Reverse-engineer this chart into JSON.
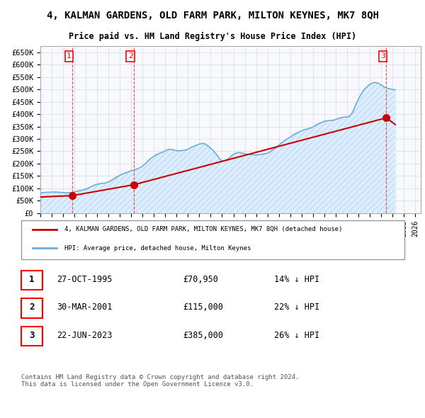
{
  "title": "4, KALMAN GARDENS, OLD FARM PARK, MILTON KEYNES, MK7 8QH",
  "subtitle": "Price paid vs. HM Land Registry's House Price Index (HPI)",
  "hpi_color": "#6baed6",
  "price_color": "#cc0000",
  "bg_color": "#ffffff",
  "grid_color": "#cccccc",
  "hatch_color": "#ddeeff",
  "ylim": [
    0,
    675000
  ],
  "yticks": [
    0,
    50000,
    100000,
    150000,
    200000,
    250000,
    300000,
    350000,
    400000,
    450000,
    500000,
    550000,
    600000,
    650000
  ],
  "xlim_start": 1993.0,
  "xlim_end": 2026.5,
  "transactions": [
    {
      "num": 1,
      "date_str": "27-OCT-1995",
      "price": 70950,
      "x": 1995.82,
      "pct": "14%",
      "dir": "↓"
    },
    {
      "num": 2,
      "date_str": "30-MAR-2001",
      "price": 115000,
      "x": 2001.24,
      "pct": "22%",
      "dir": "↓"
    },
    {
      "num": 3,
      "date_str": "22-JUN-2023",
      "price": 385000,
      "x": 2023.47,
      "pct": "26%",
      "dir": "↓"
    }
  ],
  "legend_line1": "4, KALMAN GARDENS, OLD FARM PARK, MILTON KEYNES, MK7 8QH (detached house)",
  "legend_line2": "HPI: Average price, detached house, Milton Keynes",
  "footnote": "Contains HM Land Registry data © Crown copyright and database right 2024.\nThis data is licensed under the Open Government Licence v3.0.",
  "hpi_data_x": [
    1993,
    1993.25,
    1993.5,
    1993.75,
    1994,
    1994.25,
    1994.5,
    1994.75,
    1995,
    1995.25,
    1995.5,
    1995.75,
    1996,
    1996.25,
    1996.5,
    1996.75,
    1997,
    1997.25,
    1997.5,
    1997.75,
    1998,
    1998.25,
    1998.5,
    1998.75,
    1999,
    1999.25,
    1999.5,
    1999.75,
    2000,
    2000.25,
    2000.5,
    2000.75,
    2001,
    2001.25,
    2001.5,
    2001.75,
    2002,
    2002.25,
    2002.5,
    2002.75,
    2003,
    2003.25,
    2003.5,
    2003.75,
    2004,
    2004.25,
    2004.5,
    2004.75,
    2005,
    2005.25,
    2005.5,
    2005.75,
    2006,
    2006.25,
    2006.5,
    2006.75,
    2007,
    2007.25,
    2007.5,
    2007.75,
    2008,
    2008.25,
    2008.5,
    2008.75,
    2009,
    2009.25,
    2009.5,
    2009.75,
    2010,
    2010.25,
    2010.5,
    2010.75,
    2011,
    2011.25,
    2011.5,
    2011.75,
    2012,
    2012.25,
    2012.5,
    2012.75,
    2013,
    2013.25,
    2013.5,
    2013.75,
    2014,
    2014.25,
    2014.5,
    2014.75,
    2015,
    2015.25,
    2015.5,
    2015.75,
    2016,
    2016.25,
    2016.5,
    2016.75,
    2017,
    2017.25,
    2017.5,
    2017.75,
    2018,
    2018.25,
    2018.5,
    2018.75,
    2019,
    2019.25,
    2019.5,
    2019.75,
    2020,
    2020.25,
    2020.5,
    2020.75,
    2021,
    2021.25,
    2021.5,
    2021.75,
    2022,
    2022.25,
    2022.5,
    2022.75,
    2023,
    2023.25,
    2023.5,
    2023.75,
    2024,
    2024.25
  ],
  "hpi_data_y": [
    82000,
    83000,
    84000,
    84500,
    85000,
    85500,
    85000,
    84000,
    83000,
    82000,
    82500,
    83000,
    86000,
    89000,
    91000,
    93000,
    97000,
    102000,
    108000,
    113000,
    117000,
    119000,
    121000,
    122000,
    126000,
    132000,
    140000,
    147000,
    153000,
    158000,
    163000,
    167000,
    171000,
    175000,
    179000,
    183000,
    190000,
    200000,
    212000,
    222000,
    230000,
    237000,
    242000,
    246000,
    252000,
    257000,
    258000,
    255000,
    252000,
    252000,
    253000,
    254000,
    258000,
    265000,
    270000,
    275000,
    279000,
    282000,
    280000,
    272000,
    262000,
    252000,
    238000,
    222000,
    210000,
    212000,
    218000,
    228000,
    238000,
    243000,
    245000,
    243000,
    240000,
    238000,
    237000,
    236000,
    235000,
    236000,
    238000,
    240000,
    242000,
    248000,
    257000,
    265000,
    275000,
    284000,
    292000,
    300000,
    307000,
    315000,
    322000,
    327000,
    332000,
    337000,
    340000,
    343000,
    348000,
    355000,
    361000,
    366000,
    371000,
    373000,
    374000,
    375000,
    378000,
    382000,
    386000,
    388000,
    388000,
    392000,
    408000,
    435000,
    460000,
    480000,
    498000,
    510000,
    520000,
    525000,
    528000,
    525000,
    518000,
    510000,
    505000,
    502000,
    500000,
    498000
  ]
}
